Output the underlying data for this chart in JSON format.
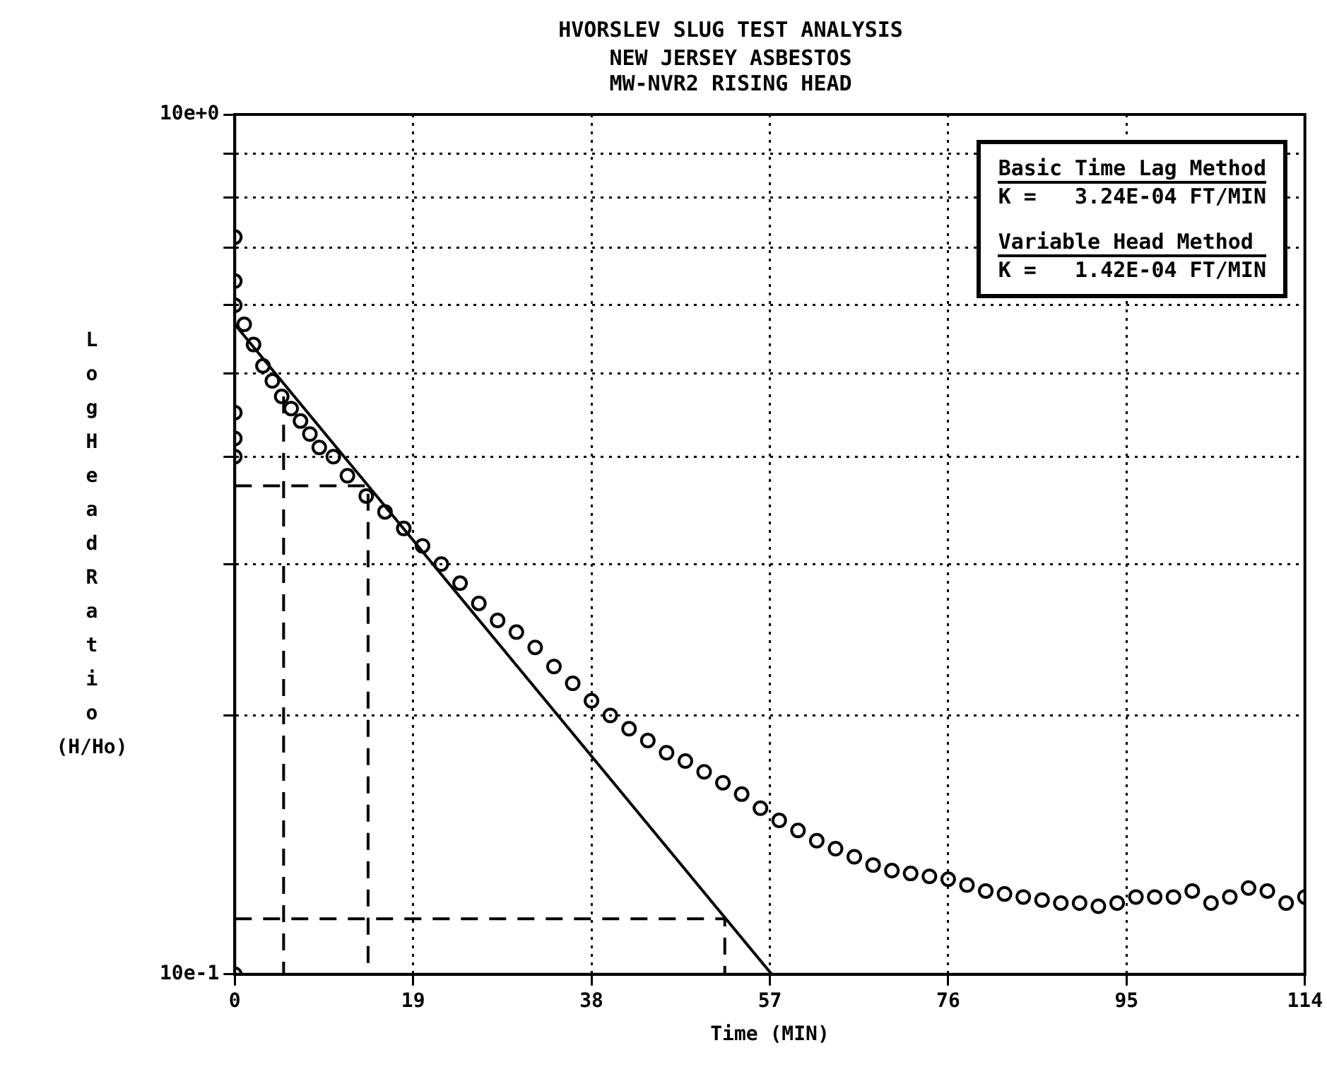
{
  "chart_data": {
    "type": "scatter",
    "title": "HVORSLEV SLUG TEST ANALYSIS",
    "subtitle": "NEW JERSEY ASBESTOS\nMW-NVR2 RISING HEAD",
    "xlabel": "Time (MIN)",
    "ylabel": "Log Head Ratio (H/Ho)",
    "annotations": [
      "Basic Time Lag Method",
      "K =   3.24E-04 FT/MIN",
      "Variable Head Method",
      "K =   1.42E-04 FT/MIN"
    ],
    "log": "y",
    "grid": true,
    "legend": false,
    "xlim": [
      0,
      114
    ],
    "xticks": [
      0,
      19,
      38,
      57,
      76,
      95,
      114
    ],
    "ylim": [
      1,
      10
    ],
    "yticks": [
      {
        "value": 1,
        "label": "10e-1"
      },
      {
        "value": 2,
        "label": null
      },
      {
        "value": 3,
        "label": null
      },
      {
        "value": 4,
        "label": null
      },
      {
        "value": 5,
        "label": null
      },
      {
        "value": 6,
        "label": null
      },
      {
        "value": 7,
        "label": null
      },
      {
        "value": 8,
        "label": null
      },
      {
        "value": 9,
        "label": null
      },
      {
        "value": 10,
        "label": "10e+0"
      }
    ],
    "series": [
      {
        "marker": "circle",
        "color": "#000000",
        "x": [
          0,
          0,
          0,
          0,
          0,
          0,
          0,
          1,
          2,
          3,
          4,
          5,
          6,
          7,
          8,
          9,
          10.5,
          12,
          14,
          16,
          18,
          20,
          22,
          24,
          26,
          28,
          30,
          32,
          34,
          36,
          38,
          40,
          42,
          44,
          46,
          48,
          50,
          52,
          54,
          56,
          58,
          60,
          62,
          64,
          66,
          68,
          70,
          72,
          74,
          76,
          78,
          80,
          82,
          84,
          86,
          88,
          90,
          92,
          94,
          96,
          98,
          100,
          102,
          104,
          106,
          108,
          110,
          112,
          114
        ],
        "values": [
          7.2,
          6.4,
          4.5,
          4.2,
          4.0,
          1.0,
          6.0,
          5.7,
          5.4,
          5.1,
          4.9,
          4.7,
          4.55,
          4.4,
          4.25,
          4.1,
          4.0,
          3.8,
          3.6,
          3.45,
          3.3,
          3.15,
          3.0,
          2.85,
          2.7,
          2.58,
          2.5,
          2.4,
          2.28,
          2.18,
          2.08,
          2.0,
          1.93,
          1.87,
          1.81,
          1.77,
          1.72,
          1.67,
          1.62,
          1.56,
          1.51,
          1.47,
          1.43,
          1.4,
          1.37,
          1.34,
          1.32,
          1.31,
          1.3,
          1.29,
          1.27,
          1.25,
          1.24,
          1.23,
          1.22,
          1.21,
          1.21,
          1.2,
          1.21,
          1.23,
          1.23,
          1.23,
          1.25,
          1.21,
          1.23,
          1.26,
          1.25,
          1.21,
          1.23
        ]
      },
      {
        "type": "line",
        "marker": "none",
        "line_style": "solid",
        "color": "#000000",
        "x": [
          0,
          57.2
        ],
        "values": [
          5.7,
          1.0
        ]
      },
      {
        "type": "line",
        "marker": "none",
        "line_style": "dashed",
        "color": "#000000",
        "x": [
          0,
          14.2,
          14.2
        ],
        "values": [
          3.7,
          3.7,
          1.0
        ]
      },
      {
        "type": "line",
        "marker": "none",
        "line_style": "dashed",
        "color": "#000000",
        "x": [
          5.2,
          5.2
        ],
        "values": [
          4.7,
          1.0
        ]
      },
      {
        "type": "line",
        "marker": "none",
        "line_style": "dashed",
        "color": "#000000",
        "x": [
          0,
          52.2,
          52.2
        ],
        "values": [
          1.16,
          1.16,
          1.0
        ]
      }
    ]
  }
}
